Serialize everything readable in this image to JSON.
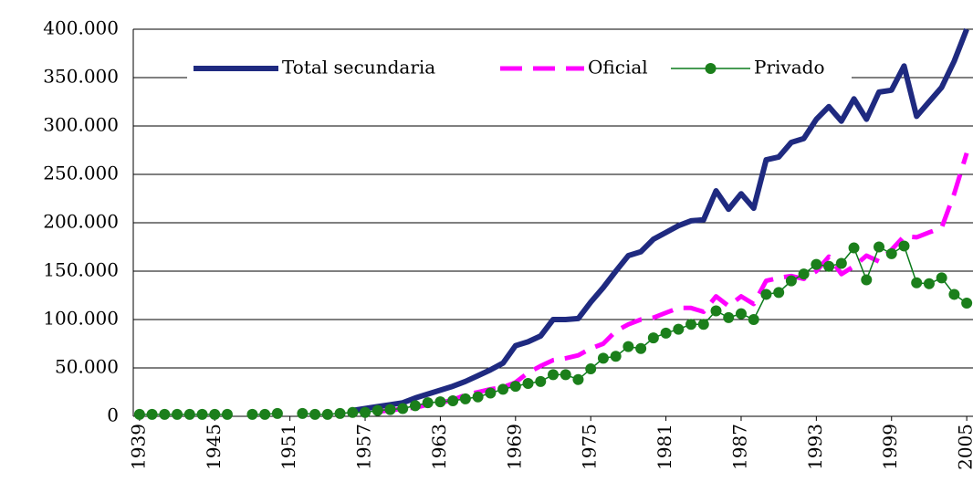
{
  "chart_data": {
    "type": "line",
    "x": [
      1939,
      1940,
      1941,
      1942,
      1943,
      1944,
      1945,
      1946,
      1947,
      1948,
      1949,
      1950,
      1951,
      1952,
      1953,
      1954,
      1955,
      1956,
      1957,
      1958,
      1959,
      1960,
      1961,
      1962,
      1963,
      1964,
      1965,
      1966,
      1967,
      1968,
      1969,
      1970,
      1971,
      1972,
      1973,
      1974,
      1975,
      1976,
      1977,
      1978,
      1979,
      1980,
      1981,
      1982,
      1983,
      1984,
      1985,
      1986,
      1987,
      1988,
      1989,
      1990,
      1991,
      1992,
      1993,
      1994,
      1995,
      1996,
      1997,
      1998,
      1999,
      2000,
      2001,
      2002,
      2003,
      2004,
      2005
    ],
    "series": [
      {
        "name": "Total secundaria",
        "color": "#1f2a80",
        "values": [
          null,
          null,
          null,
          null,
          null,
          null,
          null,
          null,
          null,
          null,
          null,
          null,
          null,
          null,
          null,
          null,
          null,
          6000,
          8000,
          10000,
          12000,
          14000,
          19000,
          23000,
          27000,
          31000,
          36000,
          42000,
          48000,
          55000,
          73000,
          77000,
          83000,
          100000,
          100000,
          101000,
          118000,
          133000,
          150000,
          166000,
          170000,
          183000,
          190000,
          197000,
          202000,
          203000,
          233000,
          214000,
          230000,
          215000,
          265000,
          268000,
          283000,
          287000,
          307000,
          320000,
          305000,
          328000,
          307000,
          335000,
          337000,
          362000,
          310000,
          325000,
          340000,
          367000,
          400000
        ]
      },
      {
        "name": "Oficial",
        "color": "#ff00ff",
        "values": [
          null,
          null,
          null,
          null,
          null,
          null,
          null,
          null,
          null,
          null,
          null,
          null,
          null,
          null,
          null,
          null,
          null,
          null,
          null,
          5000,
          6000,
          8000,
          9000,
          12000,
          14000,
          17000,
          22000,
          25000,
          28000,
          30000,
          35000,
          45000,
          52000,
          58000,
          60000,
          63000,
          70000,
          75000,
          88000,
          95000,
          100000,
          102000,
          107000,
          112000,
          112000,
          108000,
          124000,
          114000,
          124000,
          116000,
          140000,
          143000,
          145000,
          142000,
          150000,
          165000,
          147000,
          155000,
          166000,
          160000,
          172000,
          186000,
          185000,
          190000,
          195000,
          230000,
          272000
        ]
      },
      {
        "name": "Privado",
        "color": "#0a7a1a",
        "values": [
          2000,
          2000,
          2000,
          2000,
          2000,
          2000,
          2000,
          2000,
          null,
          2000,
          2000,
          3000,
          null,
          3000,
          2000,
          2000,
          3000,
          4000,
          4000,
          6000,
          7000,
          8000,
          11000,
          14000,
          15000,
          16000,
          18000,
          20000,
          24000,
          28000,
          31000,
          34000,
          36000,
          43000,
          43000,
          38000,
          49000,
          60000,
          62000,
          72000,
          70000,
          81000,
          86000,
          90000,
          95000,
          95000,
          109000,
          102000,
          106000,
          100000,
          126000,
          128000,
          140000,
          147000,
          157000,
          155000,
          158000,
          174000,
          141000,
          175000,
          168000,
          176000,
          138000,
          137000,
          143000,
          126000,
          117000
        ]
      }
    ],
    "xlim": [
      1938.5,
      2005.5
    ],
    "xticks": [
      1939,
      1945,
      1951,
      1957,
      1963,
      1969,
      1975,
      1981,
      1987,
      1993,
      1999,
      2005
    ],
    "ylim": [
      0,
      400000
    ],
    "yticks": [
      0,
      {
        "value": 50000,
        "label": "50.000"
      },
      {
        "value": 100000,
        "label": "100.000"
      },
      {
        "value": 150000,
        "label": "150.000"
      },
      {
        "value": 200000,
        "label": "200.000"
      },
      {
        "value": 250000,
        "label": "250.000"
      },
      {
        "value": 300000,
        "label": "300.000"
      },
      {
        "value": 350000,
        "label": "350.000"
      },
      {
        "value": 400000,
        "label": "400.000"
      }
    ],
    "grid": true,
    "legend": "top"
  }
}
